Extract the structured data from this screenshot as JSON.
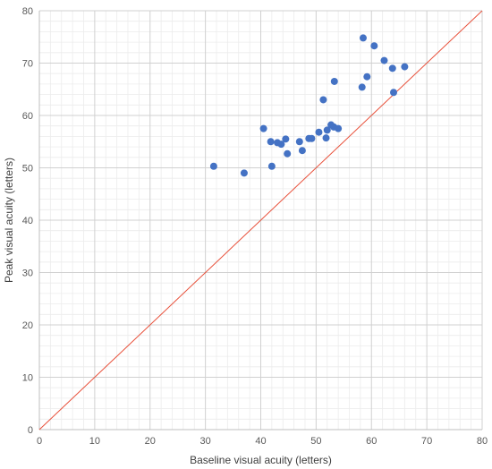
{
  "chart_data": {
    "type": "scatter",
    "title": "",
    "xlabel": "Baseline visual acuity (letters)",
    "ylabel": "Peak visual acuity (letters)",
    "xlim": [
      0,
      80
    ],
    "ylim": [
      0,
      80
    ],
    "x_ticks": [
      0,
      10,
      20,
      30,
      40,
      50,
      60,
      70,
      80
    ],
    "y_ticks": [
      0,
      10,
      20,
      30,
      40,
      50,
      60,
      70,
      80
    ],
    "grid": "major and minor",
    "legend": "none",
    "reference_line": {
      "type": "identity",
      "from": [
        0,
        0
      ],
      "to": [
        80,
        80
      ],
      "color": "#e8503a"
    },
    "marker_color": "#4472c4",
    "series": [
      {
        "points": [
          [
            31.5,
            50.3
          ],
          [
            37.0,
            49.0
          ],
          [
            40.5,
            57.5
          ],
          [
            41.8,
            55.0
          ],
          [
            42.0,
            50.3
          ],
          [
            43.0,
            54.8
          ],
          [
            43.7,
            54.5
          ],
          [
            44.5,
            55.5
          ],
          [
            44.8,
            52.7
          ],
          [
            47.0,
            55.0
          ],
          [
            47.5,
            53.3
          ],
          [
            48.7,
            55.6
          ],
          [
            49.2,
            55.6
          ],
          [
            50.5,
            56.8
          ],
          [
            51.3,
            63.0
          ],
          [
            51.8,
            55.7
          ],
          [
            52.0,
            57.2
          ],
          [
            52.7,
            58.2
          ],
          [
            53.2,
            57.8
          ],
          [
            53.3,
            66.5
          ],
          [
            54.0,
            57.5
          ],
          [
            58.3,
            65.4
          ],
          [
            58.5,
            74.8
          ],
          [
            59.2,
            67.4
          ],
          [
            60.5,
            73.3
          ],
          [
            62.3,
            70.5
          ],
          [
            63.8,
            69.0
          ],
          [
            64.0,
            64.4
          ],
          [
            66.0,
            69.3
          ]
        ]
      }
    ]
  }
}
